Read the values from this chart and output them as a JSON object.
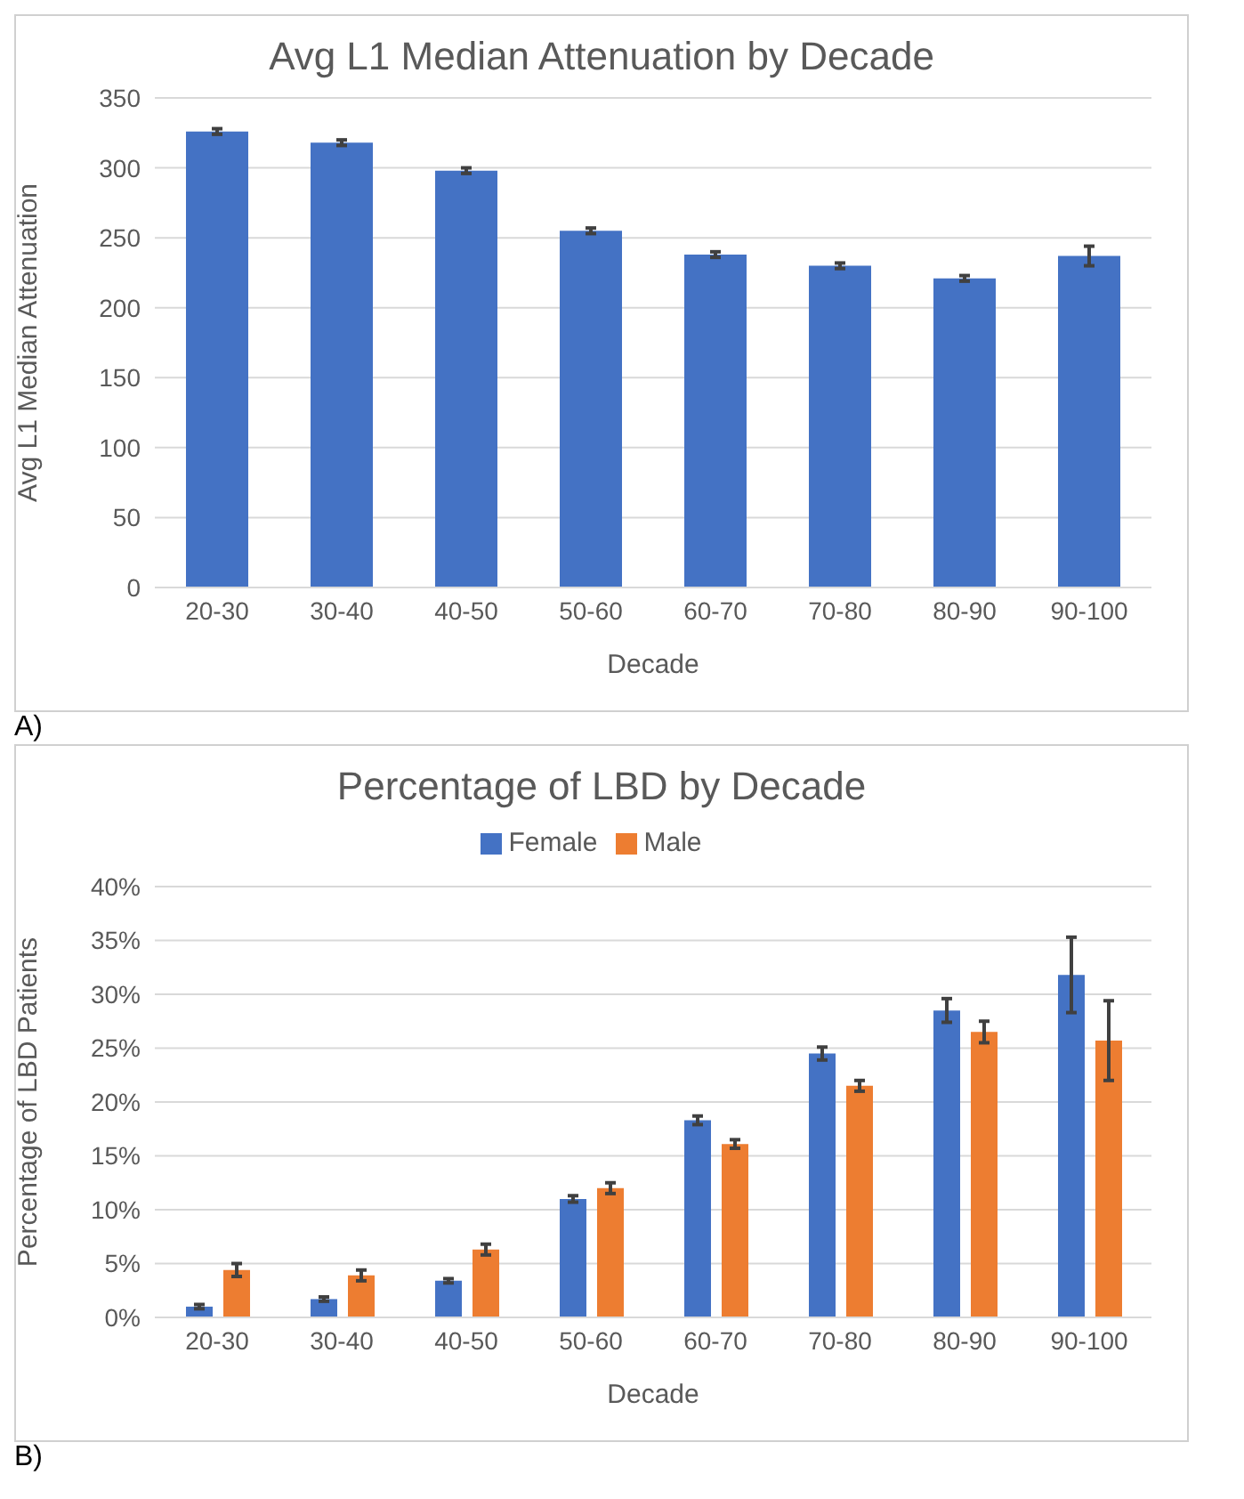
{
  "chart_data": [
    {
      "type": "bar",
      "title": "Avg L1 Median Attenuation by Decade",
      "xlabel": "Decade",
      "ylabel": "Avg L1 Median Attenuation",
      "annotations": [
        "A)"
      ],
      "categories": [
        "20-30",
        "30-40",
        "40-50",
        "50-60",
        "60-70",
        "70-80",
        "80-90",
        "90-100"
      ],
      "series": [
        {
          "color": "#4472c4",
          "values": [
            326,
            318,
            298,
            255,
            238,
            230,
            221,
            237
          ],
          "errors": [
            2,
            2,
            2,
            2,
            2,
            2,
            2,
            7
          ]
        }
      ],
      "ylim": [
        0,
        350
      ],
      "yticks": [
        0,
        50,
        100,
        150,
        200,
        250,
        300,
        350
      ],
      "grid": "y",
      "legend": false
    },
    {
      "type": "bar",
      "title": "Percentage of LBD by Decade",
      "xlabel": "Decade",
      "ylabel": "Percentage of LBD Patients",
      "annotations": [
        "B)"
      ],
      "categories": [
        "20-30",
        "30-40",
        "40-50",
        "50-60",
        "60-70",
        "70-80",
        "80-90",
        "90-100"
      ],
      "series": [
        {
          "name": "Female",
          "color": "#4472c4",
          "values": [
            1.0,
            1.7,
            3.4,
            11.0,
            18.3,
            24.5,
            28.5,
            31.8
          ],
          "errors": [
            0.2,
            0.2,
            0.2,
            0.3,
            0.4,
            0.6,
            1.1,
            3.5
          ]
        },
        {
          "name": "Male",
          "color": "#ed7d31",
          "values": [
            4.4,
            3.9,
            6.3,
            12.0,
            16.1,
            21.5,
            26.5,
            25.7
          ],
          "errors": [
            0.6,
            0.5,
            0.5,
            0.5,
            0.4,
            0.5,
            1.0,
            3.7
          ]
        }
      ],
      "ylim": [
        0,
        40
      ],
      "yticks": [
        {
          "value": 0,
          "label": "0%"
        },
        {
          "value": 5,
          "label": "5%"
        },
        {
          "value": 10,
          "label": "10%"
        },
        {
          "value": 15,
          "label": "15%"
        },
        {
          "value": 20,
          "label": "20%"
        },
        {
          "value": 25,
          "label": "25%"
        },
        {
          "value": 30,
          "label": "30%"
        },
        {
          "value": 35,
          "label": "35%"
        },
        {
          "value": 40,
          "label": "40%"
        }
      ],
      "grid": "y",
      "legend": "top"
    }
  ]
}
